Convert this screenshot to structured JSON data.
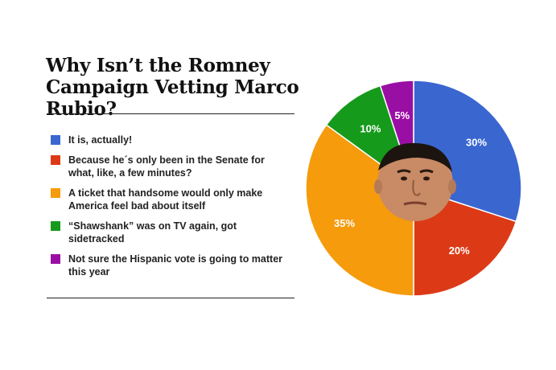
{
  "chart_data": {
    "type": "pie",
    "title": "Why Isn’t the Romney Campaign Vetting Marco Rubio?",
    "slices": [
      {
        "label": "It is, actually!",
        "value": 30,
        "display": "30%",
        "color": "#3a66d0"
      },
      {
        "label": "Because he´s only been in the Senate for what, like, a few minutes?",
        "value": 20,
        "display": "20%",
        "color": "#dc3a17"
      },
      {
        "label": "A ticket that handsome would only make America feel bad about itself",
        "value": 35,
        "display": "35%",
        "color": "#f59b0c"
      },
      {
        "label": "“Shawshank” was on TV again, got sidetracked",
        "value": 10,
        "display": "10%",
        "color": "#169a1b"
      },
      {
        "label": "Not sure the Hispanic vote is going to matter this year",
        "value": 5,
        "display": "5%",
        "color": "#9a0fa3"
      }
    ],
    "legend_position": "left",
    "center_image": "face-photo"
  }
}
